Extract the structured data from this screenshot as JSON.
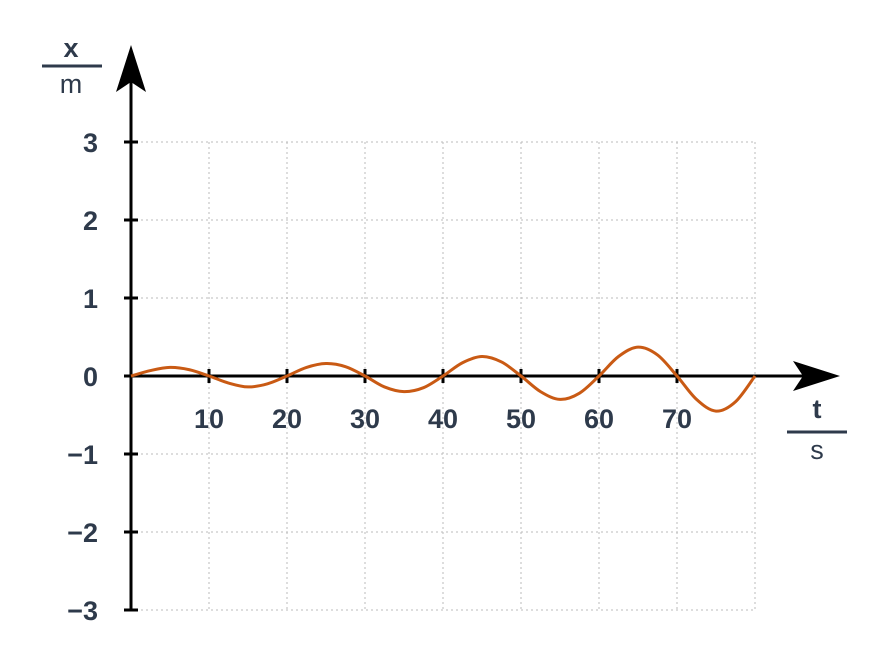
{
  "chart_data": {
    "type": "line",
    "x_label": "t",
    "x_unit": "s",
    "y_label": "x",
    "y_unit": "m",
    "x": [
      0,
      2.5,
      5,
      7.5,
      10,
      12.5,
      15,
      17.5,
      20,
      22.5,
      25,
      27.5,
      30,
      32.5,
      35,
      37.5,
      40,
      42.5,
      45,
      47.5,
      50,
      52.5,
      55,
      57.5,
      60,
      62.5,
      65,
      67.5,
      70,
      72.5,
      75,
      77.5,
      80
    ],
    "series": [
      {
        "color": "#c95a14",
        "values": [
          0,
          0.07,
          0.11,
          0.08,
          0,
          -0.09,
          -0.14,
          -0.1,
          0,
          0.11,
          0.16,
          0.12,
          0,
          -0.14,
          -0.2,
          -0.15,
          0,
          0.17,
          0.25,
          0.18,
          0,
          -0.2,
          -0.3,
          -0.22,
          0,
          0.25,
          0.37,
          0.27,
          0,
          -0.3,
          -0.45,
          -0.33,
          0
        ]
      }
    ],
    "xlim": [
      0,
      80
    ],
    "ylim": [
      -3,
      3
    ],
    "xticks": [
      10,
      20,
      30,
      40,
      50,
      60,
      70
    ],
    "yticks": [
      {
        "value": -3,
        "label": "−3"
      },
      {
        "value": -2,
        "label": "−2"
      },
      {
        "value": -1,
        "label": "−1"
      },
      0,
      1,
      2,
      3
    ],
    "grid": true
  }
}
